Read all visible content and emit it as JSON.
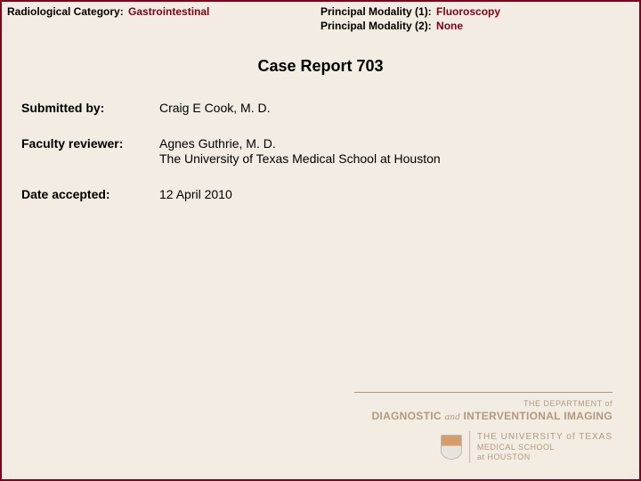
{
  "header": {
    "category_label": "Radiological Category:",
    "category_value": "Gastrointestinal",
    "modality1_label": "Principal Modality (1):",
    "modality1_value": "Fluoroscopy",
    "modality2_label": "Principal Modality (2):",
    "modality2_value": "None"
  },
  "title": "Case Report 703",
  "info": {
    "submitted_label": "Submitted by:",
    "submitted_value": "Craig E Cook, M. D.",
    "reviewer_label": "Faculty reviewer:",
    "reviewer_value": "Agnes Guthrie, M. D.\nThe University of Texas Medical School at Houston",
    "date_label": "Date accepted:",
    "date_value": "12 April 2010"
  },
  "logo": {
    "dept_pre": "THE DEPARTMENT of",
    "dept_diag": "DIAGNOSTIC",
    "dept_and": "and",
    "dept_int": "INTERVENTIONAL IMAGING",
    "ut_line1": "THE UNIVERSITY of TEXAS",
    "ut_line2": "MEDICAL SCHOOL",
    "ut_line3": "at HOUSTON"
  },
  "colors": {
    "accent": "#7a0019",
    "background": "#f3ece2",
    "logo_muted": "#b09a80"
  }
}
